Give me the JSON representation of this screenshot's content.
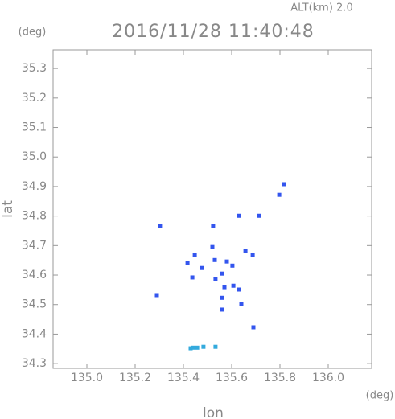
{
  "chart_data": {
    "type": "scatter",
    "title": "2016/11/28 11:40:48",
    "subtitle": "ALT(km) 2.0",
    "x_label": "lon",
    "y_label": "lat",
    "x_unit": "(deg)",
    "y_unit": "(deg)",
    "xlim": [
      134.86,
      136.18
    ],
    "ylim": [
      34.284,
      35.363
    ],
    "xticks": [
      {
        "value": 135.0,
        "label": "135.0"
      },
      135.2,
      135.4,
      135.6,
      135.8,
      {
        "value": 136.0,
        "label": "136.0"
      }
    ],
    "yticks": [
      34.3,
      34.4,
      34.5,
      34.6,
      34.7,
      34.8,
      34.9,
      {
        "value": 35.0,
        "label": "35.0"
      },
      35.1,
      35.2,
      35.3
    ],
    "series": [
      {
        "color": "#3355ee",
        "x": [
          135.797,
          135.817,
          135.713,
          135.63,
          135.523,
          135.303,
          135.29,
          135.52,
          135.447,
          135.417,
          135.53,
          135.477,
          135.56,
          135.603,
          135.657,
          135.687,
          135.57,
          135.607,
          135.56,
          135.56,
          135.63,
          135.64,
          135.437,
          135.69,
          135.533,
          135.58
        ],
        "values": [
          34.872,
          34.908,
          34.801,
          34.801,
          34.766,
          34.766,
          34.532,
          34.695,
          34.668,
          34.641,
          34.651,
          34.624,
          34.605,
          34.632,
          34.681,
          34.668,
          34.559,
          34.564,
          34.523,
          34.483,
          34.551,
          34.502,
          34.592,
          34.423,
          34.586,
          34.646
        ]
      },
      {
        "color": "#33aadd",
        "x": [
          135.43,
          135.44,
          135.457,
          135.483,
          135.533
        ],
        "values": [
          34.352,
          34.354,
          34.354,
          34.357,
          34.357
        ]
      }
    ]
  }
}
